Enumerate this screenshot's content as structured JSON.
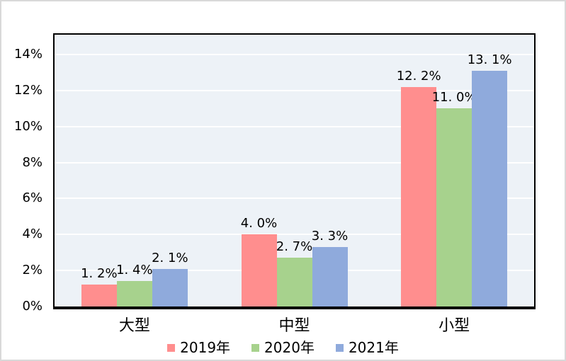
{
  "chart_data": {
    "type": "bar",
    "title": "",
    "xlabel": "",
    "ylabel": "",
    "categories": [
      "大型",
      "中型",
      "小型"
    ],
    "series": [
      {
        "name": "2019年",
        "color": "#FF8E8E",
        "values": [
          1.2,
          4.0,
          12.2
        ],
        "labels": [
          "1. 2%",
          "4. 0%",
          "12. 2%"
        ]
      },
      {
        "name": "2020年",
        "color": "#A7D28D",
        "values": [
          1.4,
          2.7,
          11.0
        ],
        "labels": [
          "1. 4%",
          "2. 7%",
          "11. 0%"
        ]
      },
      {
        "name": "2021年",
        "color": "#8FAADC",
        "values": [
          2.1,
          3.3,
          13.1
        ],
        "labels": [
          "2. 1%",
          "3. 3%",
          "13. 1%"
        ]
      }
    ],
    "y_axis": {
      "min": 0,
      "max": 15.1,
      "major_unit": 2,
      "ticks": [
        {
          "v": 0,
          "label": "0%"
        },
        {
          "v": 2,
          "label": "2%"
        },
        {
          "v": 4,
          "label": "4%"
        },
        {
          "v": 6,
          "label": "6%"
        },
        {
          "v": 8,
          "label": "8%"
        },
        {
          "v": 10,
          "label": "10%"
        },
        {
          "v": 12,
          "label": "12%"
        },
        {
          "v": 14,
          "label": "14%"
        }
      ]
    },
    "legend_position": "bottom",
    "grid": true,
    "colors": {
      "plot_bg": "#EDF2F7",
      "gridline": "#FFFFFF",
      "axis": "#000000",
      "text": "#000000",
      "figure_border": "#D9D9D9"
    }
  }
}
